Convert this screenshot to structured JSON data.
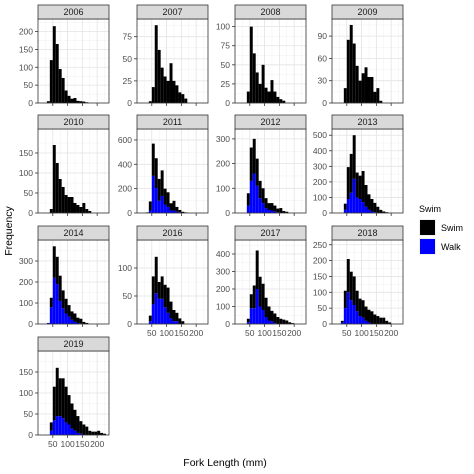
{
  "chart_data": {
    "type": "bar",
    "subtype": "faceted stacked histogram",
    "xlabel": "Fork Length (mm)",
    "ylabel": "Frequency",
    "x_ticks": [
      50,
      100,
      150,
      200
    ],
    "x_tick_labels": [
      "50",
      "100",
      "150",
      "200"
    ],
    "xlim": [
      0,
      240
    ],
    "bin_width": 10,
    "bin_starts": [
      30,
      40,
      50,
      60,
      70,
      80,
      90,
      100,
      110,
      120,
      130,
      140,
      150,
      160,
      170,
      180,
      190,
      200,
      210,
      220
    ],
    "grid": true,
    "legend": {
      "title": "Swim",
      "position": "right",
      "entries": [
        {
          "label": "Swim",
          "color": "#000000"
        },
        {
          "label": "Walk",
          "color": "#0000ff"
        }
      ]
    },
    "series_order": [
      "Swim",
      "Walk"
    ],
    "panels": [
      {
        "title": "2006",
        "ylim": [
          0,
          235
        ],
        "yticks": [
          0,
          50,
          100,
          150,
          200
        ],
        "Swim": [
          5,
          120,
          215,
          165,
          95,
          70,
          35,
          20,
          12,
          14,
          6,
          5,
          4,
          2,
          0,
          0,
          0,
          0,
          0,
          0
        ],
        "Walk": [
          0,
          0,
          0,
          0,
          0,
          0,
          0,
          0,
          0,
          0,
          0,
          0,
          0,
          0,
          0,
          0,
          0,
          0,
          0,
          0
        ]
      },
      {
        "title": "2007",
        "ylim": [
          0,
          95
        ],
        "yticks": [
          0,
          25,
          50,
          75
        ],
        "Swim": [
          0,
          2,
          18,
          88,
          60,
          40,
          30,
          25,
          45,
          25,
          20,
          12,
          10,
          5,
          0,
          0,
          0,
          0,
          0,
          0
        ],
        "Walk": [
          0,
          0,
          0,
          0,
          0,
          0,
          0,
          0,
          0,
          0,
          0,
          0,
          0,
          0,
          0,
          0,
          0,
          0,
          0,
          0
        ]
      },
      {
        "title": "2008",
        "ylim": [
          0,
          110
        ],
        "yticks": [
          0,
          25,
          50,
          75,
          100
        ],
        "Swim": [
          0,
          15,
          100,
          65,
          40,
          25,
          50,
          20,
          15,
          30,
          15,
          8,
          5,
          3,
          0,
          0,
          0,
          0,
          0,
          0
        ],
        "Walk": [
          0,
          0,
          0,
          0,
          0,
          0,
          0,
          0,
          0,
          0,
          0,
          0,
          0,
          0,
          0,
          0,
          0,
          0,
          0,
          0
        ]
      },
      {
        "title": "2009",
        "ylim": [
          0,
          113
        ],
        "yticks": [
          0,
          30,
          60,
          90
        ],
        "Swim": [
          0,
          20,
          85,
          105,
          80,
          50,
          30,
          40,
          48,
          35,
          35,
          15,
          20,
          3,
          0,
          0,
          0,
          0,
          0,
          0
        ],
        "Walk": [
          0,
          0,
          0,
          0,
          0,
          0,
          0,
          0,
          0,
          0,
          0,
          0,
          0,
          0,
          0,
          0,
          0,
          0,
          0,
          0
        ]
      },
      {
        "title": "2010",
        "ylim": [
          0,
          210
        ],
        "yticks": [
          0,
          50,
          100,
          150
        ],
        "Swim": [
          0,
          10,
          170,
          125,
          85,
          65,
          45,
          40,
          40,
          25,
          20,
          15,
          25,
          10,
          5,
          0,
          0,
          0,
          0,
          0
        ],
        "Walk": [
          0,
          0,
          0,
          0,
          0,
          0,
          0,
          0,
          0,
          0,
          0,
          0,
          0,
          0,
          0,
          0,
          0,
          0,
          0,
          0
        ]
      },
      {
        "title": "2011",
        "ylim": [
          0,
          690
        ],
        "yticks": [
          0,
          200,
          400,
          600
        ],
        "Swim": [
          5,
          75,
          265,
          245,
          180,
          210,
          130,
          120,
          60,
          80,
          40,
          20,
          10,
          5,
          0,
          0,
          0,
          0,
          0,
          0
        ],
        "Walk": [
          0,
          20,
          305,
          205,
          100,
          140,
          70,
          50,
          20,
          20,
          10,
          5,
          0,
          0,
          0,
          0,
          0,
          0,
          0,
          0
        ]
      },
      {
        "title": "2012",
        "ylim": [
          0,
          340
        ],
        "yticks": [
          0,
          100,
          200,
          300
        ],
        "Swim": [
          0,
          50,
          135,
          140,
          110,
          70,
          60,
          40,
          28,
          30,
          25,
          15,
          20,
          8,
          5,
          0,
          0,
          0,
          0,
          0
        ],
        "Walk": [
          0,
          30,
          130,
          160,
          110,
          60,
          40,
          20,
          12,
          10,
          5,
          3,
          0,
          0,
          0,
          0,
          0,
          0,
          0,
          0
        ]
      },
      {
        "title": "2013",
        "ylim": [
          0,
          540
        ],
        "yticks": [
          0,
          100,
          200,
          300,
          400,
          500
        ],
        "Swim": [
          0,
          40,
          205,
          250,
          280,
          160,
          150,
          200,
          140,
          100,
          80,
          60,
          40,
          20,
          10,
          5,
          0,
          0,
          0,
          0
        ],
        "Walk": [
          0,
          20,
          90,
          130,
          220,
          100,
          90,
          70,
          40,
          20,
          10,
          5,
          0,
          0,
          0,
          0,
          0,
          0,
          0,
          0
        ]
      },
      {
        "title": "2014",
        "ylim": [
          0,
          400
        ],
        "yticks": [
          0,
          100,
          200,
          300
        ],
        "Swim": [
          0,
          45,
          150,
          130,
          120,
          85,
          70,
          55,
          40,
          40,
          25,
          22,
          10,
          5,
          0,
          0,
          0,
          0,
          0,
          0
        ],
        "Walk": [
          5,
          80,
          220,
          190,
          110,
          75,
          50,
          35,
          20,
          10,
          5,
          3,
          0,
          0,
          0,
          0,
          0,
          0,
          0,
          0
        ]
      },
      {
        "title": "2016",
        "ylim": [
          0,
          150
        ],
        "yticks": [
          0,
          50,
          100
        ],
        "Swim": [
          0,
          10,
          50,
          65,
          30,
          40,
          40,
          45,
          30,
          20,
          15,
          10,
          5,
          0,
          0,
          0,
          0,
          0,
          0,
          0
        ],
        "Walk": [
          0,
          5,
          35,
          55,
          45,
          45,
          30,
          20,
          10,
          5,
          5,
          0,
          0,
          0,
          0,
          0,
          0,
          0,
          0,
          0
        ]
      },
      {
        "title": "2017",
        "ylim": [
          0,
          480
        ],
        "yticks": [
          0,
          100,
          200,
          300,
          400
        ],
        "Swim": [
          0,
          20,
          80,
          130,
          220,
          170,
          150,
          110,
          80,
          60,
          55,
          40,
          30,
          25,
          20,
          10,
          5,
          0,
          0,
          0
        ],
        "Walk": [
          0,
          10,
          90,
          90,
          200,
          100,
          80,
          40,
          20,
          15,
          5,
          0,
          0,
          0,
          0,
          0,
          0,
          0,
          0,
          0
        ]
      },
      {
        "title": "2018",
        "ylim": [
          0,
          265
        ],
        "yticks": [
          0,
          50,
          100,
          150,
          200,
          250
        ],
        "Swim": [
          5,
          55,
          105,
          90,
          90,
          65,
          55,
          55,
          45,
          40,
          40,
          30,
          25,
          20,
          20,
          10,
          5,
          0,
          0,
          0
        ],
        "Walk": [
          5,
          50,
          100,
          75,
          60,
          40,
          25,
          20,
          10,
          5,
          0,
          0,
          0,
          0,
          0,
          0,
          0,
          0,
          0,
          0
        ]
      },
      {
        "title": "2019",
        "ylim": [
          0,
          200
        ],
        "yticks": [
          0,
          50,
          100,
          150
        ],
        "Swim": [
          0,
          20,
          80,
          115,
          90,
          95,
          85,
          70,
          60,
          50,
          40,
          30,
          25,
          20,
          10,
          8,
          8,
          10,
          5,
          3
        ],
        "Walk": [
          0,
          10,
          35,
          45,
          45,
          40,
          30,
          25,
          15,
          10,
          5,
          3,
          0,
          0,
          0,
          0,
          0,
          0,
          0,
          0
        ]
      }
    ]
  }
}
